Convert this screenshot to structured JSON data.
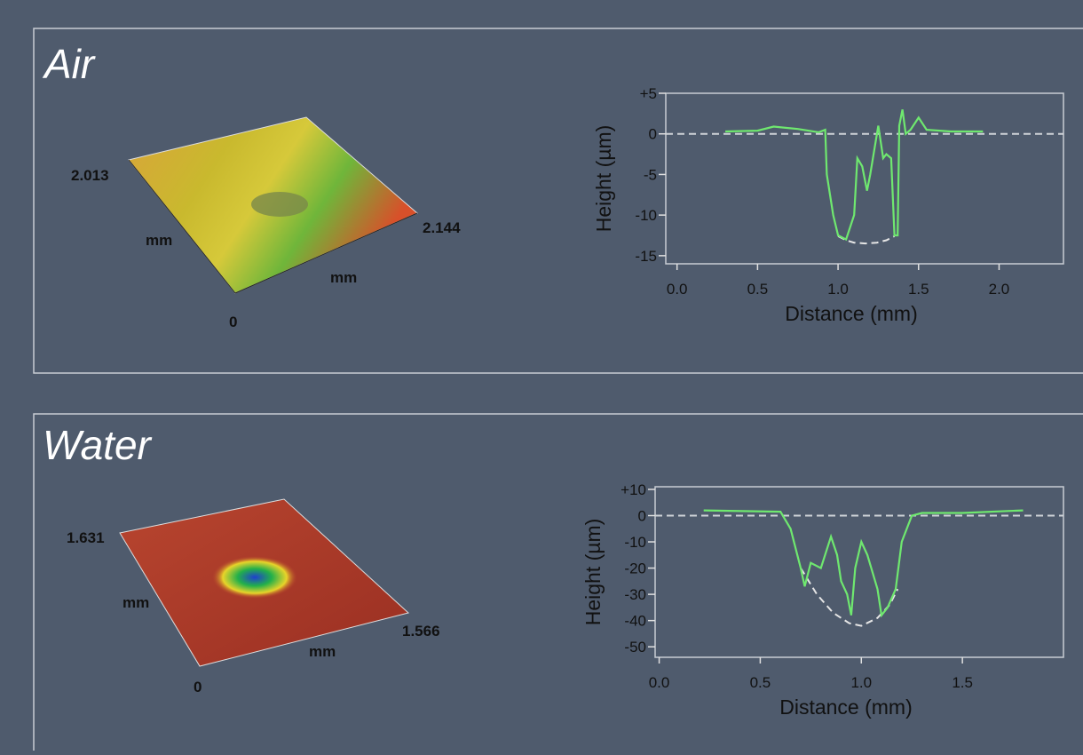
{
  "panels": [
    {
      "title": "Air",
      "surface_labels": [
        "2.013",
        "mm",
        "2.144",
        "mm",
        "0"
      ]
    },
    {
      "title": "Water",
      "surface_labels": [
        "1.631",
        "mm",
        "1.566",
        "mm",
        "0"
      ]
    }
  ],
  "chart_data": [
    {
      "type": "line",
      "xlabel": "Distance (mm)",
      "ylabel": "Height (µm)",
      "xlim": [
        -0.07,
        2.4
      ],
      "ylim": [
        -16,
        5
      ],
      "xticks": [
        {
          "value": 0,
          "label": "0.0"
        },
        0.5,
        {
          "value": 1,
          "label": "1.0"
        },
        1.5,
        {
          "value": 2,
          "label": "2.0"
        }
      ],
      "yticks": [
        {
          "value": 5,
          "label": "+5"
        },
        0,
        -5,
        -10,
        -15
      ],
      "series": [
        {
          "color": "#cfd3d8",
          "dash": true,
          "x": [
            -0.07,
            2.4
          ],
          "values": [
            0,
            0
          ]
        },
        {
          "color": "#e6e6e6",
          "dash": true,
          "x": [
            1.0,
            1.05,
            1.1,
            1.17,
            1.24,
            1.3,
            1.35
          ],
          "values": [
            -12.6,
            -13.1,
            -13.4,
            -13.5,
            -13.4,
            -13.1,
            -12.6
          ]
        },
        {
          "color": "#6fe86f",
          "dash": false,
          "x": [
            0.3,
            0.5,
            0.6,
            0.75,
            0.88,
            0.92,
            0.93,
            0.97,
            1.0,
            1.05,
            1.1,
            1.12,
            1.15,
            1.18,
            1.2,
            1.25,
            1.28,
            1.3,
            1.33,
            1.35,
            1.37,
            1.38,
            1.4,
            1.42,
            1.45,
            1.5,
            1.55,
            1.7,
            1.9
          ],
          "values": [
            0.3,
            0.4,
            0.9,
            0.6,
            0.2,
            0.5,
            -5,
            -10,
            -12.5,
            -13,
            -10,
            -3,
            -4,
            -7,
            -5,
            1,
            -3,
            -2.5,
            -3,
            -12.5,
            -12.5,
            1,
            3,
            0,
            0.5,
            2,
            0.5,
            0.3,
            0.3
          ]
        }
      ]
    },
    {
      "type": "line",
      "xlabel": "Distance (mm)",
      "ylabel": "Height (µm)",
      "xlim": [
        -0.02,
        2.0
      ],
      "ylim": [
        -54,
        11
      ],
      "xticks": [
        {
          "value": 0,
          "label": "0.0"
        },
        0.5,
        {
          "value": 1,
          "label": "1.0"
        },
        1.5
      ],
      "yticks": [
        {
          "value": 10,
          "label": "+10"
        },
        0,
        -10,
        -20,
        -30,
        -40,
        -50
      ],
      "series": [
        {
          "color": "#cfd3d8",
          "dash": true,
          "x": [
            -0.02,
            2.0
          ],
          "values": [
            0,
            0
          ]
        },
        {
          "color": "#e6e6e6",
          "dash": true,
          "x": [
            0.7,
            0.78,
            0.86,
            0.94,
            1.0,
            1.08,
            1.14,
            1.18
          ],
          "values": [
            -20,
            -30,
            -37,
            -41,
            -42,
            -39,
            -34,
            -28
          ]
        },
        {
          "color": "#6fe86f",
          "dash": false,
          "x": [
            0.22,
            0.6,
            0.65,
            0.7,
            0.72,
            0.75,
            0.8,
            0.85,
            0.88,
            0.9,
            0.93,
            0.95,
            0.97,
            1.0,
            1.03,
            1.08,
            1.1,
            1.13,
            1.17,
            1.2,
            1.25,
            1.3,
            1.5,
            1.8
          ],
          "values": [
            2,
            1.5,
            -5,
            -20,
            -27,
            -18,
            -20,
            -8,
            -15,
            -25,
            -30,
            -38,
            -20,
            -10,
            -15,
            -28,
            -38,
            -35,
            -28,
            -10,
            0,
            1,
            1,
            2
          ]
        }
      ]
    }
  ]
}
